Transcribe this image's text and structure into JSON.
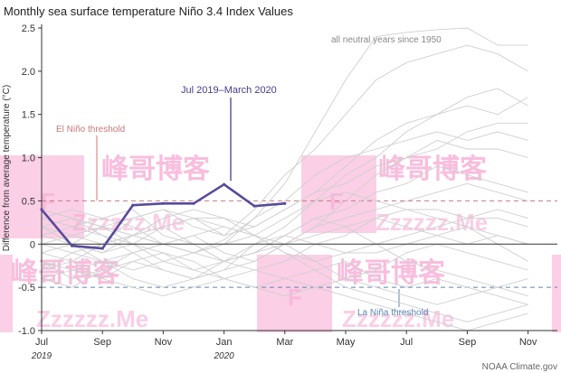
{
  "chart_data": {
    "type": "line",
    "title": "Monthly sea surface temperature Niño 3.4 Index Values",
    "ylabel": "Difference from average temperature (°C)",
    "xlabel": "",
    "ylim": [
      -1.0,
      2.5
    ],
    "yticks": [
      "2.5",
      "2.0",
      "1.5",
      "1.0",
      "0.5",
      "0",
      "-0.5",
      "-1.0"
    ],
    "ytick_values": [
      2.5,
      2.0,
      1.5,
      1.0,
      0.5,
      0,
      -0.5,
      -1.0
    ],
    "xticks": [
      {
        "label": "Jul",
        "month": 0
      },
      {
        "label": "Sep",
        "month": 2
      },
      {
        "label": "Nov",
        "month": 4
      },
      {
        "label": "Jan",
        "month": 6
      },
      {
        "label": "Mar",
        "month": 8
      },
      {
        "label": "May",
        "month": 10
      },
      {
        "label": "Jul",
        "month": 12
      },
      {
        "label": "Sep",
        "month": 14
      },
      {
        "label": "Nov",
        "month": 16
      }
    ],
    "year_labels": [
      {
        "label": "2019",
        "month": 0
      },
      {
        "label": "2020",
        "month": 6
      }
    ],
    "grid": false,
    "thresholds": {
      "el_nino": {
        "value": 0.5,
        "label": "El Niño threshold",
        "color": "#c97878"
      },
      "la_nina": {
        "value": -0.5,
        "label": "La Niña threshold",
        "color": "#5b87b5"
      }
    },
    "annotations": {
      "neutral_years": "all neutral years since 1950",
      "highlight": "Jul 2019–March 2020",
      "credit": "NOAA Climate.gov"
    },
    "series": [
      {
        "name": "Jul 2019–March 2020",
        "color": "#5a4a9c",
        "x": [
          0,
          1,
          2,
          3,
          4,
          5,
          6,
          7,
          8
        ],
        "y": [
          0.4,
          -0.02,
          -0.05,
          0.45,
          0.47,
          0.47,
          0.69,
          0.44,
          0.47
        ]
      }
    ],
    "background_series_color": "#cfcfcf",
    "background_series": [
      [
        0.2,
        0.3,
        0.2,
        0.1,
        0.0,
        -0.1,
        0.05,
        0.3,
        0.7,
        1.3,
        1.9,
        2.4,
        2.45,
        2.48,
        2.5,
        2.3,
        2.3
      ],
      [
        -0.3,
        -0.2,
        0.0,
        0.3,
        0.4,
        0.2,
        0.1,
        0.4,
        0.8,
        1.1,
        1.5,
        1.9,
        2.1,
        2.2,
        2.3,
        2.2,
        2.0
      ],
      [
        0.4,
        0.3,
        0.1,
        -0.1,
        -0.3,
        -0.4,
        -0.3,
        0.0,
        0.2,
        0.5,
        0.8,
        1.0,
        1.3,
        1.5,
        1.7,
        1.8,
        1.6
      ],
      [
        0.1,
        0.0,
        -0.1,
        0.0,
        0.2,
        0.3,
        0.3,
        0.2,
        0.4,
        0.6,
        0.7,
        0.9,
        1.0,
        1.1,
        1.3,
        1.4,
        1.4
      ],
      [
        -0.2,
        -0.4,
        -0.3,
        -0.1,
        0.0,
        0.1,
        -0.1,
        -0.2,
        0.0,
        0.2,
        0.5,
        0.8,
        1.0,
        1.2,
        1.1,
        1.1,
        1.0
      ],
      [
        0.3,
        0.2,
        0.3,
        0.4,
        0.1,
        0.0,
        -0.2,
        -0.1,
        0.1,
        0.3,
        0.4,
        0.6,
        0.7,
        0.9,
        0.8,
        0.7,
        0.6
      ],
      [
        0.0,
        0.1,
        0.2,
        0.0,
        -0.2,
        -0.3,
        -0.2,
        -0.1,
        0.0,
        0.2,
        0.3,
        0.4,
        0.5,
        0.6,
        0.7,
        0.6,
        0.5
      ],
      [
        -0.1,
        -0.2,
        -0.4,
        -0.5,
        -0.6,
        -0.5,
        -0.4,
        -0.3,
        -0.2,
        0.0,
        0.1,
        0.3,
        0.4,
        0.4,
        0.3,
        0.3,
        0.2
      ],
      [
        0.2,
        0.0,
        -0.2,
        -0.4,
        -0.5,
        -0.4,
        -0.2,
        0.0,
        0.1,
        0.0,
        -0.1,
        -0.1,
        0.0,
        0.1,
        0.2,
        0.1,
        0.0
      ],
      [
        -0.4,
        -0.3,
        -0.2,
        -0.1,
        0.0,
        0.1,
        0.2,
        0.1,
        0.0,
        -0.2,
        -0.4,
        -0.3,
        -0.1,
        0.0,
        -0.1,
        -0.2,
        -0.3
      ],
      [
        0.1,
        0.2,
        0.1,
        0.0,
        -0.1,
        -0.2,
        -0.4,
        -0.5,
        -0.4,
        -0.3,
        -0.2,
        -0.4,
        -0.5,
        -0.4,
        -0.5,
        -0.6,
        -0.7
      ],
      [
        0.0,
        -0.1,
        -0.2,
        -0.3,
        -0.2,
        -0.1,
        0.0,
        0.1,
        -0.1,
        -0.3,
        -0.5,
        -0.6,
        -0.7,
        -0.8,
        -0.9,
        -0.8,
        -0.7
      ],
      [
        -0.2,
        -0.3,
        -0.4,
        -0.2,
        -0.1,
        -0.3,
        -0.4,
        -0.5,
        -0.6,
        -0.5,
        -0.4,
        -0.5,
        -0.6,
        -0.7,
        -0.6,
        -0.5,
        -0.4
      ],
      [
        0.3,
        0.4,
        0.3,
        0.2,
        0.0,
        -0.1,
        -0.2,
        -0.3,
        -0.4,
        -0.5,
        -0.6,
        -0.7,
        -0.8,
        -0.9,
        -1.0,
        -0.9,
        -0.8
      ],
      [
        -0.3,
        -0.1,
        0.0,
        0.1,
        0.2,
        0.0,
        -0.2,
        -0.1,
        0.1,
        0.3,
        0.2,
        0.0,
        -0.2,
        -0.3,
        -0.4,
        -0.5,
        -0.6
      ],
      [
        0.4,
        0.3,
        0.2,
        0.1,
        0.2,
        0.3,
        0.2,
        0.1,
        0.3,
        0.5,
        0.6,
        0.5,
        0.4,
        0.3,
        0.2,
        0.0,
        -0.2
      ],
      [
        -0.1,
        0.0,
        0.2,
        0.3,
        0.4,
        0.3,
        0.1,
        0.2,
        0.4,
        0.6,
        0.9,
        1.2,
        1.4,
        1.5,
        1.6,
        1.5,
        1.7
      ],
      [
        0.2,
        0.1,
        0.0,
        0.1,
        0.0,
        -0.1,
        0.0,
        0.3,
        0.5,
        0.8,
        1.0,
        1.1,
        1.2,
        1.3,
        1.2,
        1.3,
        1.2
      ],
      [
        -0.4,
        -0.5,
        -0.3,
        -0.2,
        -0.3,
        -0.4,
        -0.3,
        -0.2,
        0.0,
        0.1,
        0.2,
        0.3,
        0.2,
        0.1,
        0.0,
        0.1,
        0.0
      ],
      [
        0.0,
        0.0,
        -0.1,
        0.1,
        0.3,
        0.4,
        0.3,
        0.1,
        -0.1,
        -0.2,
        -0.1,
        0.0,
        0.1,
        0.2,
        0.3,
        0.4,
        0.3
      ]
    ]
  },
  "watermark": {
    "cn": "峰哥博客",
    "en": "Zzzzzz.Me",
    "letter": "F",
    "color": "#f7a7d2"
  }
}
